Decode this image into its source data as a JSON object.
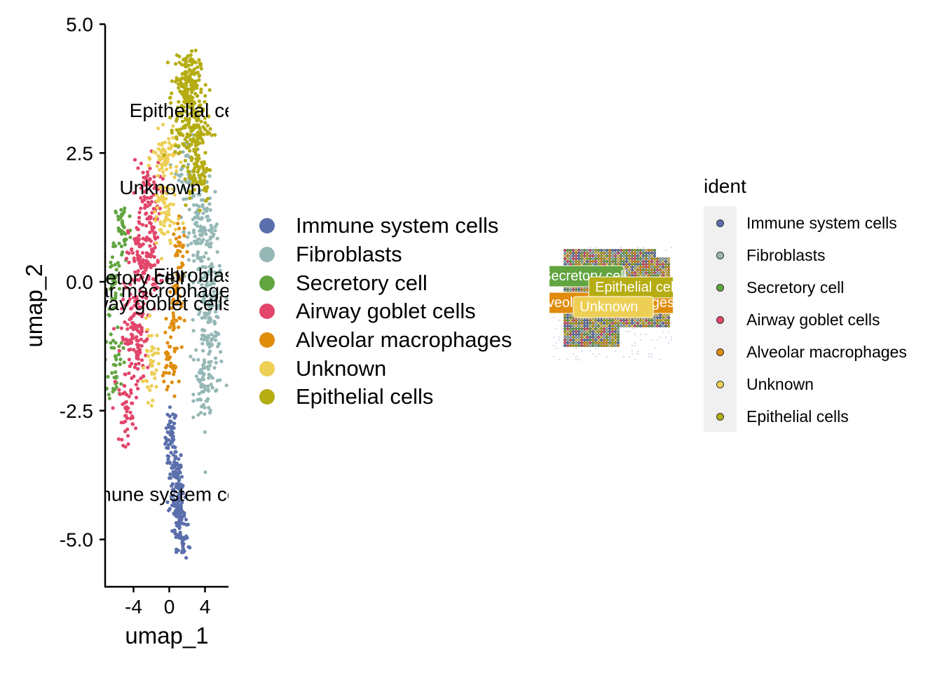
{
  "colors": {
    "Immune system cells": "#5b6fac",
    "Fibroblasts": "#95b8b6",
    "Secretory cell": "#62a440",
    "Airway goblet cells": "#e2466b",
    "Alveolar macrophages": "#e08c0b",
    "Unknown": "#edcf55",
    "Epithelial cells": "#b5ad12"
  },
  "chart_data": [
    {
      "type": "scatter",
      "xlabel": "umap_1",
      "ylabel": "umap_2",
      "x_ticks": [
        "-4",
        "0",
        "4"
      ],
      "y_ticks": [
        "5.0",
        "2.5",
        "0.0",
        "-2.5",
        "-5.0"
      ],
      "xlim": [
        -7.5,
        6.5
      ],
      "ylim": [
        -5.9,
        5.0
      ],
      "series": [
        {
          "name": "Immune system cells",
          "center": [
            1.0,
            -4.0
          ]
        },
        {
          "name": "Fibroblasts",
          "center": [
            4.0,
            -0.5
          ]
        },
        {
          "name": "Secretory cell",
          "center": [
            -5.5,
            0.0
          ]
        },
        {
          "name": "Airway goblet cells",
          "center": [
            -3.0,
            -0.5
          ]
        },
        {
          "name": "Alveolar macrophages",
          "center": [
            0.5,
            -0.5
          ]
        },
        {
          "name": "Unknown",
          "center": [
            -1.0,
            1.5
          ]
        },
        {
          "name": "Epithelial cells",
          "center": [
            2.5,
            3.2
          ]
        }
      ],
      "cluster_labels": [
        {
          "text": "Epithelial cells",
          "x": 2.5,
          "y": 3.2
        },
        {
          "text": "Unknown",
          "x": -1.0,
          "y": 1.7
        },
        {
          "text": "Secretory cell",
          "x": -5.0,
          "y": -0.05
        },
        {
          "text": "Fibroblasts",
          "x": 3.6,
          "y": 0.0
        },
        {
          "text": "Alveolar macrophages",
          "x": -3.0,
          "y": -0.3
        },
        {
          "text": "Airway goblet cells",
          "x": -2.0,
          "y": -0.55
        },
        {
          "text": "Immune system cells",
          "x": -0.5,
          "y": -4.25
        }
      ]
    },
    {
      "type": "spatial",
      "cluster_labels": [
        "Secretory cell",
        "Epithelial cells",
        "Alveolar macrophages",
        "Unknown"
      ]
    }
  ],
  "legend": {
    "items": [
      "Immune system cells",
      "Fibroblasts",
      "Secretory cell",
      "Airway goblet cells",
      "Alveolar macrophages",
      "Unknown",
      "Epithelial cells"
    ]
  },
  "legend2": {
    "title": "ident",
    "items": [
      "Immune system cells",
      "Fibroblasts",
      "Secretory cell",
      "Airway goblet cells",
      "Alveolar macrophages",
      "Unknown",
      "Epithelial cells"
    ]
  }
}
